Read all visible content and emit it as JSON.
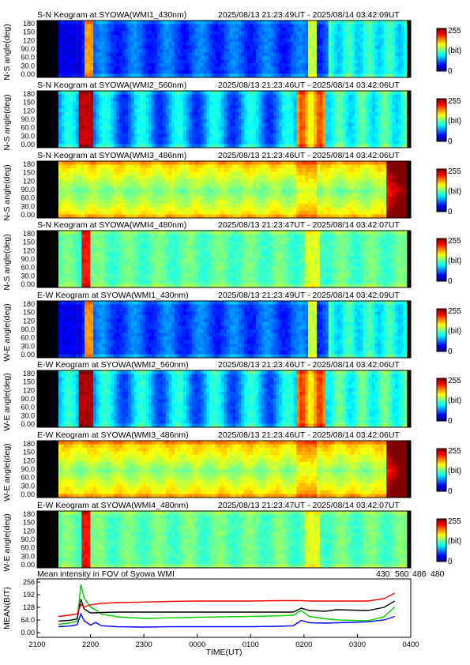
{
  "colors": {
    "wl430": "#0000ff",
    "wl560": "#00cc00",
    "wl486": "#ff0000",
    "wl480": "#000000"
  },
  "chart_data": [
    {
      "type": "heatmap",
      "title": "S-N Keogram at SYOWA(WMI1_430nm)",
      "time_range": "2025/08/13 21:23:49UT - 2025/08/14 03:42:09UT",
      "ylabel": "N-S angle(deg)",
      "yticks": [
        "180",
        "150",
        "120",
        "90.0",
        "60.0",
        "30.0",
        "0.00"
      ],
      "ylim": [
        0,
        180
      ],
      "colorbar": {
        "max": "255",
        "unit": "(bit)",
        "min": "0"
      },
      "profile": "w430",
      "baseline": 0.18
    },
    {
      "type": "heatmap",
      "title": "S-N Keogram at SYOWA(WMI2_560nm)",
      "time_range": "2025/08/13 21:23:46UT - 2025/08/14 03:42:06UT",
      "ylabel": "N-S angle(deg)",
      "yticks": [
        "180",
        "150",
        "120",
        "90.0",
        "60.0",
        "30.0",
        "0.00"
      ],
      "ylim": [
        0,
        180
      ],
      "colorbar": {
        "max": "255",
        "unit": "(bit)",
        "min": "0"
      },
      "profile": "w560",
      "baseline": 0.3
    },
    {
      "type": "heatmap",
      "title": "S-N Keogram at SYOWA(WMI3_486nm)",
      "time_range": "2025/08/13 21:23:46UT - 2025/08/14 03:42:06UT",
      "ylabel": "N-S angle(deg)",
      "yticks": [
        "180",
        "150",
        "120",
        "90.0",
        "60.0",
        "30.0",
        "0.00"
      ],
      "ylim": [
        0,
        180
      ],
      "colorbar": {
        "max": "255",
        "unit": "(bit)",
        "min": "0"
      },
      "profile": "w486",
      "baseline": 0.5
    },
    {
      "type": "heatmap",
      "title": "S-N Keogram at SYOWA(WMI4_480nm)",
      "time_range": "2025/08/13 21:23:47UT - 2025/08/14 03:42:07UT",
      "ylabel": "N-S angle(deg)",
      "yticks": [
        "180",
        "150",
        "120",
        "90.0",
        "60.0",
        "30.0",
        "0.00"
      ],
      "ylim": [
        0,
        180
      ],
      "colorbar": {
        "max": "255",
        "unit": "(bit)",
        "min": "0"
      },
      "profile": "w480",
      "baseline": 0.46
    },
    {
      "type": "heatmap",
      "title": "E-W Keogram at SYOWA(WMI1_430nm)",
      "time_range": "2025/08/13 21:23:49UT - 2025/08/14 03:42:09UT",
      "ylabel": "W-E angle(deg)",
      "yticks": [
        "180",
        "150",
        "120",
        "90.0",
        "60.0",
        "30.0",
        "0.00"
      ],
      "ylim": [
        0,
        180
      ],
      "colorbar": {
        "max": "255",
        "unit": "(bit)",
        "min": "0"
      },
      "profile": "w430",
      "baseline": 0.2
    },
    {
      "type": "heatmap",
      "title": "E-W Keogram at SYOWA(WMI2_560nm)",
      "time_range": "2025/08/13 21:23:46UT - 2025/08/14 03:42:06UT",
      "ylabel": "W-E angle(deg)",
      "yticks": [
        "180",
        "150",
        "120",
        "90.0",
        "60.0",
        "30.0",
        "0.00"
      ],
      "ylim": [
        0,
        180
      ],
      "colorbar": {
        "max": "255",
        "unit": "(bit)",
        "min": "0"
      },
      "profile": "w560",
      "baseline": 0.36
    },
    {
      "type": "heatmap",
      "title": "E-W Keogram at SYOWA(WMI3_486nm)",
      "time_range": "2025/08/13 21:23:46UT - 2025/08/14 03:42:06UT",
      "ylabel": "W-E angle(deg)",
      "yticks": [
        "180",
        "150",
        "120",
        "90.0",
        "60.0",
        "30.0",
        "0.00"
      ],
      "ylim": [
        0,
        180
      ],
      "colorbar": {
        "max": "255",
        "unit": "(bit)",
        "min": "0"
      },
      "profile": "w486",
      "baseline": 0.55
    },
    {
      "type": "heatmap",
      "title": "E-W Keogram at SYOWA(WMI4_480nm)",
      "time_range": "2025/08/13 21:23:47UT - 2025/08/14 03:42:07UT",
      "ylabel": "W-E angle(deg)",
      "yticks": [
        "180",
        "150",
        "120",
        "90.0",
        "60.0",
        "30.0",
        "0.00"
      ],
      "ylim": [
        0,
        180
      ],
      "colorbar": {
        "max": "255",
        "unit": "(bit)",
        "min": "0"
      },
      "profile": "w480",
      "baseline": 0.48
    },
    {
      "type": "line",
      "title": "Mean intensity in FOV of Syowa WMI",
      "xlabel": "TIME(UT)",
      "ylabel": "MEAN(BIT)",
      "xticks": [
        2100,
        2200,
        2300,
        0,
        100,
        200,
        300,
        400
      ],
      "xtick_labels": [
        "2100",
        "2200",
        "2300",
        "0000",
        "0100",
        "0200",
        "0300",
        "0400"
      ],
      "xlim": [
        21.0,
        28.0
      ],
      "yticks": [
        "256",
        "192",
        "128",
        "64.0",
        "0.00"
      ],
      "ylim": [
        0,
        256
      ],
      "legend": [
        "430",
        "560",
        "486",
        "480"
      ],
      "x_hours": [
        21.4,
        21.6,
        21.75,
        21.82,
        21.88,
        22.0,
        22.1,
        22.2,
        22.5,
        23.0,
        23.5,
        24.0,
        24.5,
        25.0,
        25.5,
        25.8,
        25.95,
        26.1,
        26.4,
        26.6,
        26.9,
        27.2,
        27.5,
        27.7
      ],
      "series": [
        {
          "name": "430",
          "values": [
            30,
            33,
            40,
            95,
            60,
            38,
            52,
            35,
            30,
            28,
            30,
            30,
            30,
            30,
            32,
            35,
            62,
            50,
            48,
            50,
            52,
            55,
            64,
            82
          ]
        },
        {
          "name": "560",
          "values": [
            42,
            48,
            60,
            245,
            175,
            130,
            115,
            95,
            80,
            72,
            75,
            78,
            80,
            82,
            85,
            88,
            112,
            82,
            70,
            65,
            62,
            60,
            80,
            130
          ]
        },
        {
          "name": "486",
          "values": [
            82,
            88,
            95,
            142,
            130,
            140,
            145,
            148,
            152,
            155,
            158,
            160,
            160,
            160,
            162,
            162,
            162,
            160,
            160,
            160,
            160,
            160,
            172,
            200
          ]
        },
        {
          "name": "480",
          "values": [
            58,
            62,
            70,
            170,
            120,
            100,
            100,
            102,
            104,
            104,
            104,
            104,
            104,
            104,
            104,
            104,
            124,
            112,
            108,
            116,
            114,
            112,
            128,
            160
          ]
        }
      ]
    }
  ]
}
